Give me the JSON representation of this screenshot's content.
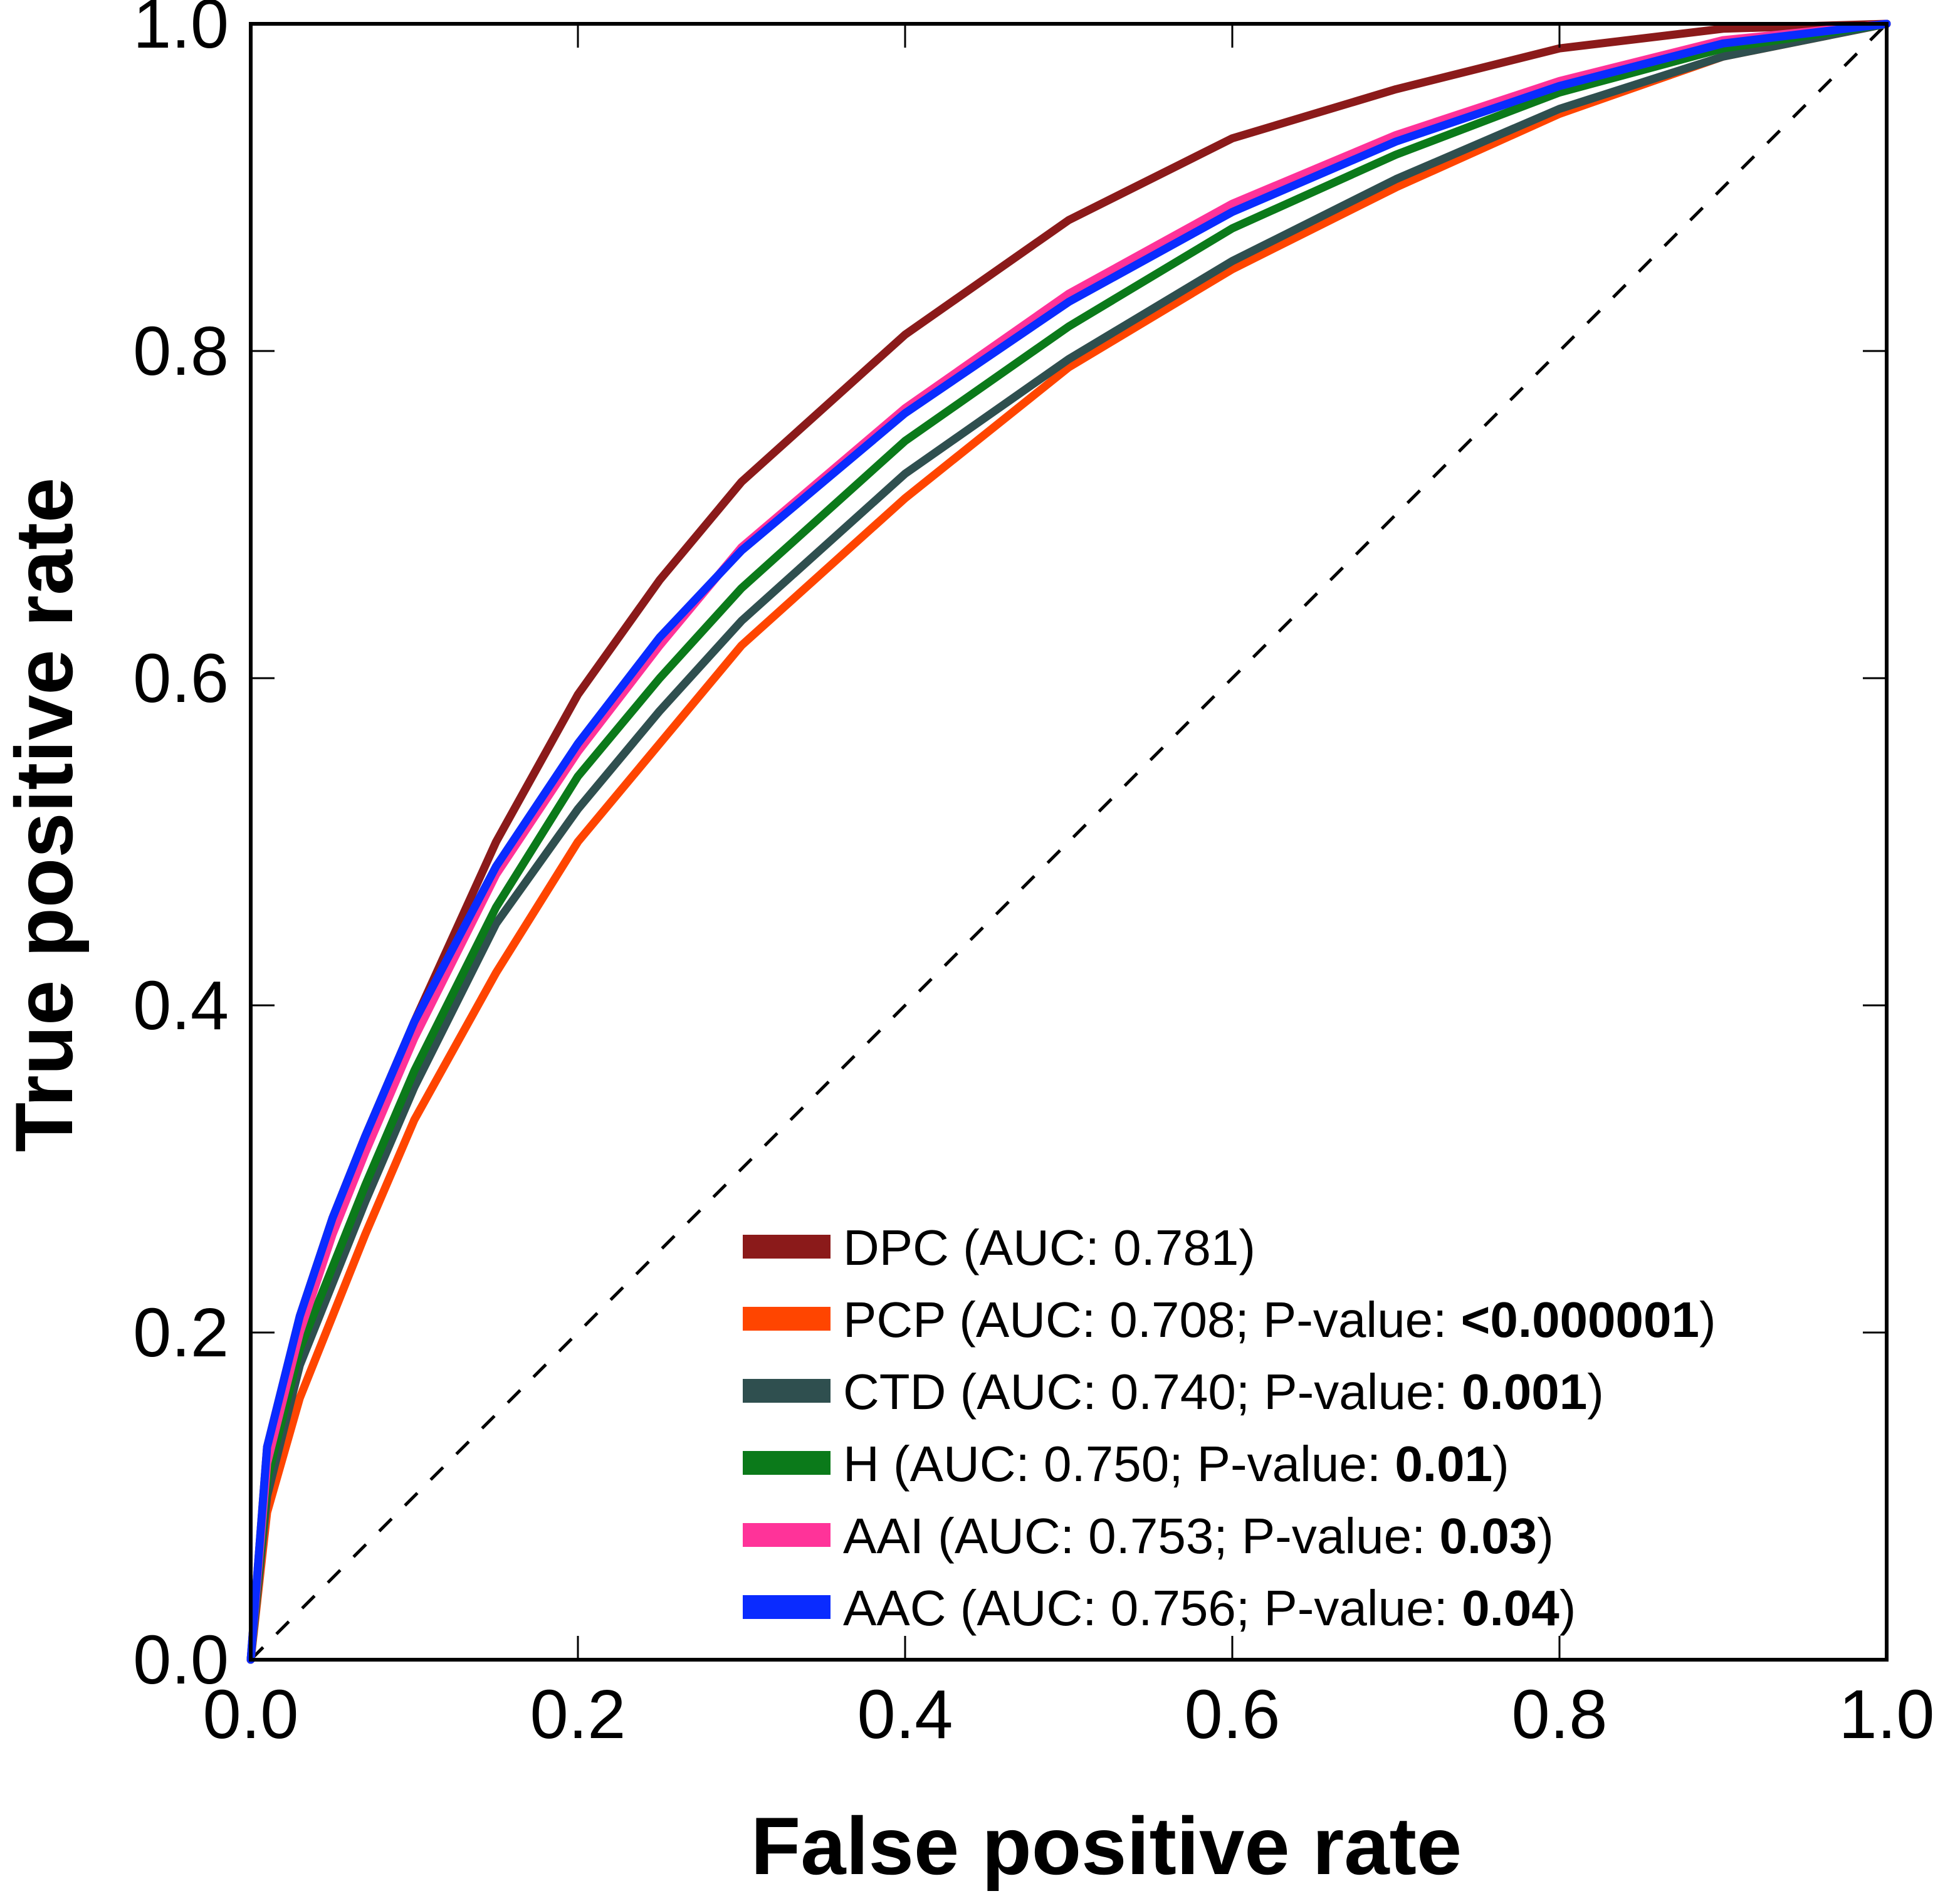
{
  "chart_data": {
    "type": "line",
    "title": "",
    "xlabel": "False positive rate",
    "ylabel": "True positive rate",
    "xlim": [
      0,
      1
    ],
    "ylim": [
      0,
      1
    ],
    "xticks": [
      "0.0",
      "0.2",
      "0.4",
      "0.6",
      "0.8",
      "1.0"
    ],
    "yticks": [
      "0.0",
      "0.2",
      "0.4",
      "0.6",
      "0.8",
      "1.0"
    ],
    "xtick_values": [
      0,
      0.2,
      0.4,
      0.6,
      0.8,
      1.0
    ],
    "ytick_values": [
      0,
      0.2,
      0.4,
      0.6,
      0.8,
      1.0
    ],
    "grid": false,
    "legend_position": "bottom-right",
    "diagonal": {
      "name": "chance",
      "x": [
        0,
        1
      ],
      "y": [
        0,
        1
      ],
      "style": "dashed",
      "color": "#000000"
    },
    "series": [
      {
        "name": "DPC",
        "legend_prefix": "DPC (AUC: 0.781",
        "legend_bold": "",
        "legend_suffix": ")",
        "color": "#8b1a1a",
        "x": [
          0,
          0.01,
          0.03,
          0.05,
          0.07,
          0.1,
          0.15,
          0.2,
          0.25,
          0.3,
          0.4,
          0.5,
          0.6,
          0.7,
          0.8,
          0.9,
          1.0
        ],
        "y": [
          0,
          0.13,
          0.21,
          0.27,
          0.32,
          0.39,
          0.5,
          0.59,
          0.66,
          0.72,
          0.81,
          0.88,
          0.93,
          0.96,
          0.985,
          0.997,
          1.0
        ]
      },
      {
        "name": "PCP",
        "legend_prefix": "PCP (AUC: 0.708; P-value: ",
        "legend_bold": "<0.000001",
        "legend_suffix": ")",
        "color": "#ff4500",
        "x": [
          0,
          0.01,
          0.03,
          0.05,
          0.07,
          0.1,
          0.15,
          0.2,
          0.25,
          0.3,
          0.4,
          0.5,
          0.6,
          0.7,
          0.8,
          0.9,
          1.0
        ],
        "y": [
          0,
          0.09,
          0.16,
          0.21,
          0.26,
          0.33,
          0.42,
          0.5,
          0.56,
          0.62,
          0.71,
          0.79,
          0.85,
          0.9,
          0.945,
          0.98,
          1.0
        ]
      },
      {
        "name": "CTD",
        "legend_prefix": "CTD (AUC: 0.740; P-value: ",
        "legend_bold": "0.001",
        "legend_suffix": ")",
        "color": "#2f4f4f",
        "x": [
          0,
          0.01,
          0.03,
          0.05,
          0.07,
          0.1,
          0.15,
          0.2,
          0.25,
          0.3,
          0.4,
          0.5,
          0.6,
          0.7,
          0.8,
          0.9,
          1.0
        ],
        "y": [
          0,
          0.1,
          0.18,
          0.23,
          0.28,
          0.35,
          0.45,
          0.52,
          0.58,
          0.635,
          0.725,
          0.795,
          0.855,
          0.905,
          0.948,
          0.98,
          1.0
        ]
      },
      {
        "name": "H",
        "legend_prefix": "H (AUC: 0.750; P-value: ",
        "legend_bold": "0.01",
        "legend_suffix": ")",
        "color": "#0b7a1a",
        "x": [
          0,
          0.01,
          0.03,
          0.05,
          0.07,
          0.1,
          0.15,
          0.2,
          0.25,
          0.3,
          0.4,
          0.5,
          0.6,
          0.7,
          0.8,
          0.9,
          1.0
        ],
        "y": [
          0,
          0.11,
          0.19,
          0.24,
          0.29,
          0.36,
          0.46,
          0.54,
          0.6,
          0.655,
          0.745,
          0.815,
          0.875,
          0.92,
          0.958,
          0.985,
          1.0
        ]
      },
      {
        "name": "AAI",
        "legend_prefix": "AAI (AUC: 0.753; P-value: ",
        "legend_bold": "0.03",
        "legend_suffix": ")",
        "color": "#ff3399",
        "x": [
          0,
          0.01,
          0.03,
          0.05,
          0.07,
          0.1,
          0.15,
          0.2,
          0.25,
          0.3,
          0.4,
          0.5,
          0.6,
          0.7,
          0.8,
          0.9,
          1.0
        ],
        "y": [
          0,
          0.12,
          0.2,
          0.26,
          0.31,
          0.38,
          0.48,
          0.555,
          0.62,
          0.68,
          0.765,
          0.835,
          0.89,
          0.932,
          0.965,
          0.99,
          1.0
        ]
      },
      {
        "name": "AAC",
        "legend_prefix": "AAC (AUC: 0.756; P-value: ",
        "legend_bold": "0.04",
        "legend_suffix": ")",
        "color": "#0a2bff",
        "x": [
          0,
          0.01,
          0.03,
          0.05,
          0.07,
          0.1,
          0.15,
          0.2,
          0.25,
          0.3,
          0.4,
          0.5,
          0.6,
          0.7,
          0.8,
          0.9,
          1.0
        ],
        "y": [
          0,
          0.13,
          0.21,
          0.27,
          0.32,
          0.39,
          0.485,
          0.56,
          0.625,
          0.678,
          0.762,
          0.83,
          0.885,
          0.928,
          0.962,
          0.988,
          1.0
        ]
      }
    ]
  }
}
